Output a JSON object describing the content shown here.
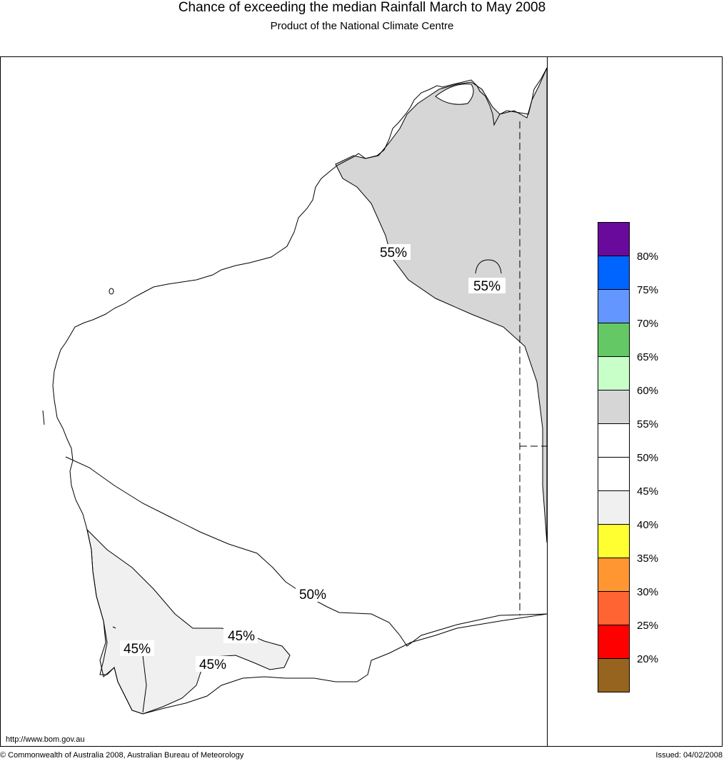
{
  "title": "Chance of exceeding the median Rainfall March to May 2008",
  "subtitle": "Product of the National Climate Centre",
  "footer": {
    "url": "http://www.bom.gov.au",
    "copyright": "© Commonwealth of Australia 2008, Australian Bureau of Meteorology",
    "issued": "Issued: 04/02/2008"
  },
  "map": {
    "contour_labels": [
      "55%",
      "55%",
      "50%",
      "45%",
      "45%",
      "45%"
    ],
    "colors": {
      "region_55_60": "#d6d6d6",
      "region_40_45": "#f0f0f0",
      "outline": "#000000"
    }
  },
  "legend": {
    "colors": [
      "#6a0a9c",
      "#0064ff",
      "#6496ff",
      "#64c864",
      "#c8ffc8",
      "#d6d6d6",
      "#ffffff",
      "#ffffff",
      "#f0f0f0",
      "#ffff32",
      "#ff9632",
      "#ff6432",
      "#ff0000",
      "#96641e"
    ],
    "labels": [
      "80%",
      "75%",
      "70%",
      "65%",
      "60%",
      "55%",
      "50%",
      "45%",
      "40%",
      "35%",
      "30%",
      "25%",
      "20%"
    ]
  }
}
